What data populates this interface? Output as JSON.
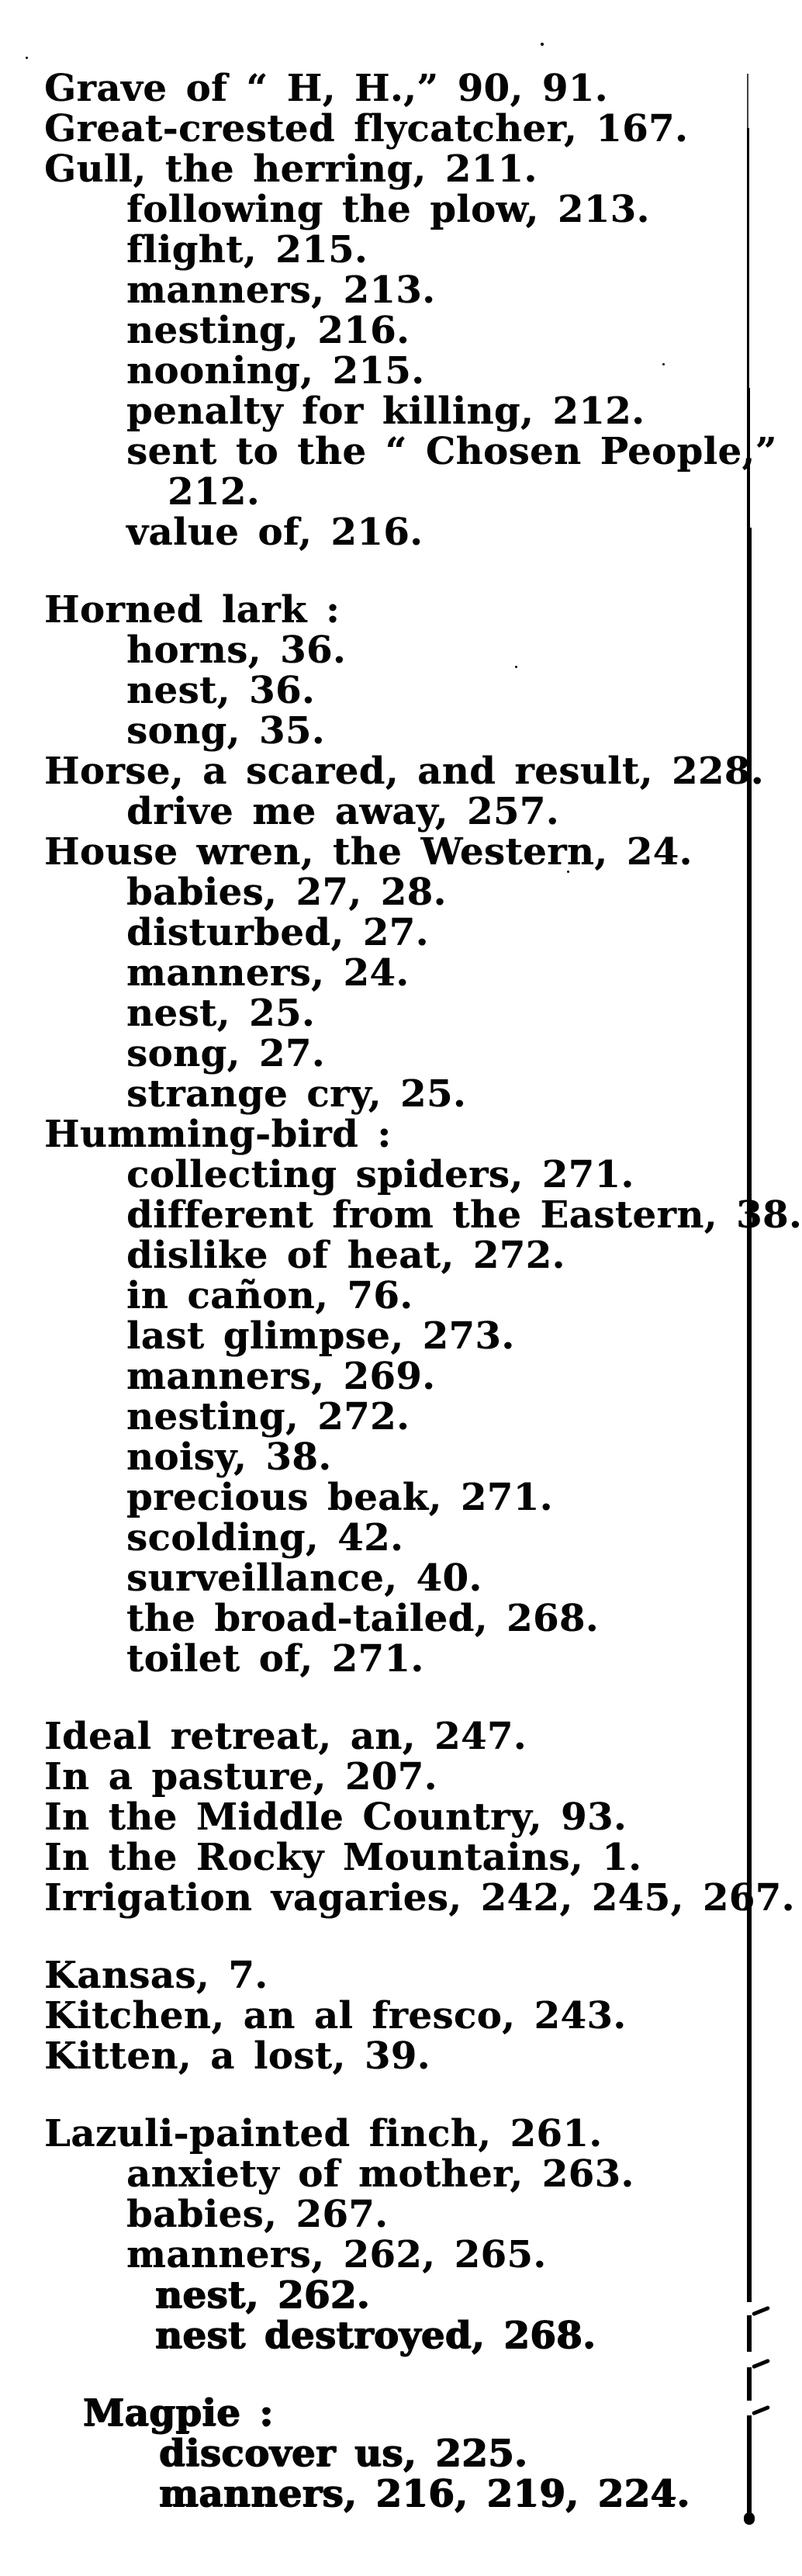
{
  "page": {
    "kind": "scanned-book-index-page",
    "background_color": "#ffffff",
    "ink_color": "#040404"
  },
  "entries": [
    {
      "text": "Grave of “ H, H.,” 90, 91.",
      "level": "main",
      "gap": false,
      "heavy": false
    },
    {
      "text": "Great-crested flycatcher, 167.",
      "level": "main",
      "gap": false,
      "heavy": false
    },
    {
      "text": "Gull, the herring, 211.",
      "level": "main",
      "gap": false,
      "heavy": false
    },
    {
      "text": "following the plow, 213.",
      "level": "sub",
      "gap": false,
      "heavy": false
    },
    {
      "text": "flight, 215.",
      "level": "sub",
      "gap": false,
      "heavy": false
    },
    {
      "text": "manners, 213.",
      "level": "sub",
      "gap": false,
      "heavy": false
    },
    {
      "text": "nesting, 216.",
      "level": "sub",
      "gap": false,
      "heavy": false
    },
    {
      "text": "nooning, 215.",
      "level": "sub",
      "gap": false,
      "heavy": false
    },
    {
      "text": "penalty for killing, 212.",
      "level": "sub",
      "gap": false,
      "heavy": false
    },
    {
      "text": "sent to the “ Chosen People,”",
      "level": "sub",
      "gap": false,
      "heavy": false
    },
    {
      "text": "212.",
      "level": "cont",
      "gap": false,
      "heavy": false
    },
    {
      "text": "value of, 216.",
      "level": "sub",
      "gap": false,
      "heavy": false
    },
    {
      "text": "Horned lark :",
      "level": "main",
      "gap": true,
      "heavy": false
    },
    {
      "text": "horns, 36.",
      "level": "sub",
      "gap": false,
      "heavy": false
    },
    {
      "text": "nest, 36.",
      "level": "sub",
      "gap": false,
      "heavy": false
    },
    {
      "text": "song, 35.",
      "level": "sub",
      "gap": false,
      "heavy": false
    },
    {
      "text": "Horse, a scared, and result, 228.",
      "level": "main",
      "gap": false,
      "heavy": false
    },
    {
      "text": "drive me away, 257.",
      "level": "sub",
      "gap": false,
      "heavy": false
    },
    {
      "text": "House wren, the Western, 24.",
      "level": "main",
      "gap": false,
      "heavy": false
    },
    {
      "text": "babies, 27, 28.",
      "level": "sub",
      "gap": false,
      "heavy": false
    },
    {
      "text": "disturbed, 27.",
      "level": "sub",
      "gap": false,
      "heavy": false
    },
    {
      "text": "manners, 24.",
      "level": "sub",
      "gap": false,
      "heavy": false
    },
    {
      "text": "nest, 25.",
      "level": "sub",
      "gap": false,
      "heavy": false
    },
    {
      "text": "song, 27.",
      "level": "sub",
      "gap": false,
      "heavy": false
    },
    {
      "text": "strange cry, 25.",
      "level": "sub",
      "gap": false,
      "heavy": false
    },
    {
      "text": "Humming-bird :",
      "level": "main",
      "gap": false,
      "heavy": false
    },
    {
      "text": "collecting spiders, 271.",
      "level": "sub",
      "gap": false,
      "heavy": false
    },
    {
      "text": "different from the Eastern, 38.",
      "level": "sub",
      "gap": false,
      "heavy": false
    },
    {
      "text": "dislike of heat, 272.",
      "level": "sub",
      "gap": false,
      "heavy": false
    },
    {
      "text": "in cañon, 76.",
      "level": "sub",
      "gap": false,
      "heavy": false
    },
    {
      "text": "last glimpse, 273.",
      "level": "sub",
      "gap": false,
      "heavy": false
    },
    {
      "text": "manners, 269.",
      "level": "sub",
      "gap": false,
      "heavy": false
    },
    {
      "text": "nesting, 272.",
      "level": "sub",
      "gap": false,
      "heavy": false
    },
    {
      "text": "noisy, 38.",
      "level": "sub",
      "gap": false,
      "heavy": false
    },
    {
      "text": "precious beak, 271.",
      "level": "sub",
      "gap": false,
      "heavy": false
    },
    {
      "text": "scolding, 42.",
      "level": "sub",
      "gap": false,
      "heavy": false
    },
    {
      "text": "surveillance, 40.",
      "level": "sub",
      "gap": false,
      "heavy": false
    },
    {
      "text": "the broad-tailed, 268.",
      "level": "sub",
      "gap": false,
      "heavy": false
    },
    {
      "text": "toilet of, 271.",
      "level": "sub",
      "gap": false,
      "heavy": false
    },
    {
      "text": "Ideal retreat, an, 247.",
      "level": "main",
      "gap": true,
      "heavy": false
    },
    {
      "text": "In a pasture, 207.",
      "level": "main",
      "gap": false,
      "heavy": false
    },
    {
      "text": "In the Middle Country, 93.",
      "level": "main",
      "gap": false,
      "heavy": false
    },
    {
      "text": "In the Rocky Mountains, 1.",
      "level": "main",
      "gap": false,
      "heavy": false
    },
    {
      "text": "Irrigation vagaries, 242, 245, 267.",
      "level": "main",
      "gap": false,
      "heavy": false
    },
    {
      "text": "Kansas, 7.",
      "level": "main",
      "gap": true,
      "heavy": false
    },
    {
      "text": "Kitchen, an al fresco, 243.",
      "level": "main",
      "gap": false,
      "heavy": false
    },
    {
      "text": "Kitten, a lost, 39.",
      "level": "main",
      "gap": false,
      "heavy": false
    },
    {
      "text": "Lazuli-painted finch, 261.",
      "level": "main",
      "gap": true,
      "heavy": false
    },
    {
      "text": "anxiety of mother, 263.",
      "level": "sub",
      "gap": false,
      "heavy": false
    },
    {
      "text": "babies, 267.",
      "level": "sub",
      "gap": false,
      "heavy": false
    },
    {
      "text": "manners, 262, 265.",
      "level": "sub",
      "gap": false,
      "heavy": false
    },
    {
      "text": "nest, 262.",
      "level": "sub2",
      "gap": false,
      "heavy": true
    },
    {
      "text": "nest destroyed, 268.",
      "level": "sub2",
      "gap": false,
      "heavy": true
    },
    {
      "text": "Magpie :",
      "level": "main3",
      "gap": true,
      "heavy": true
    },
    {
      "text": "discover us, 225.",
      "level": "sub3",
      "gap": false,
      "heavy": true
    },
    {
      "text": "manners, 216, 219, 224.",
      "level": "sub3",
      "gap": false,
      "heavy": true
    }
  ]
}
